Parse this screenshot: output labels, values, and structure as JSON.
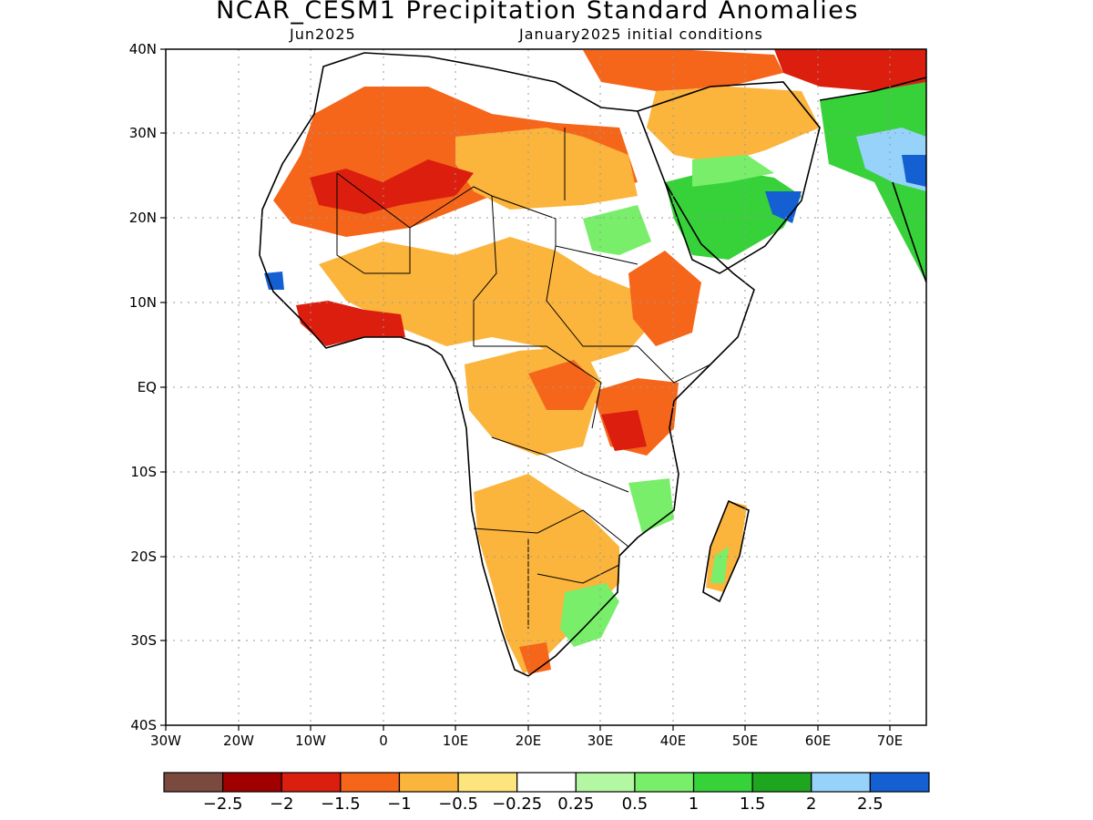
{
  "header": {
    "title": "NCAR_CESM1 Precipitation Standard Anomalies",
    "left_subtitle": "Jun2025",
    "right_subtitle": "January2025 initial conditions"
  },
  "map": {
    "type": "map",
    "region": "Africa",
    "lat_range": [
      -40,
      40
    ],
    "lon_range": [
      -30,
      75
    ],
    "grid": true,
    "y_ticks": [
      "40N",
      "30N",
      "20N",
      "10N",
      "EQ",
      "10S",
      "20S",
      "30S",
      "40S"
    ],
    "x_ticks": [
      "30W",
      "20W",
      "10W",
      "0",
      "10E",
      "20E",
      "30E",
      "40E",
      "50E",
      "60E",
      "70E"
    ]
  },
  "colorbar": {
    "colors": [
      "#7a4a3f",
      "#a00000",
      "#dc1e0e",
      "#f5661a",
      "#fbb43c",
      "#fde47c",
      "#ffffff",
      "#b4f7a2",
      "#78ee6a",
      "#37d13a",
      "#1ea61e",
      "#96d2fa",
      "#1460d2"
    ],
    "labels": [
      "-2.5",
      "-2",
      "-1.5",
      "-1",
      "-0.5",
      "-0.25",
      "0.25",
      "0.5",
      "1",
      "1.5",
      "2",
      "2.5"
    ]
  }
}
